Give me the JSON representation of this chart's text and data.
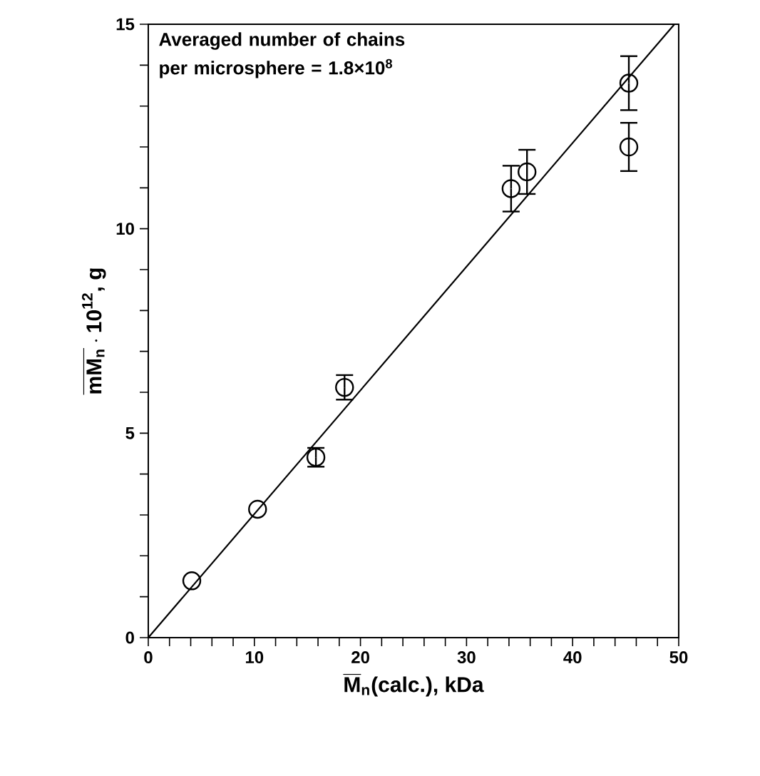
{
  "chart_data": {
    "type": "scatter",
    "xlabel": "\\overline{\\text{\\bfseries M}}_{\\text{\\bfseries n}}\\text{\\bfseries (calc.), kDa}",
    "ylabel": "\\overline{\\text{\\bfseries mM}_{\\text{\\bfseries n}}}\\cdot\\text{\\bfseries 10}^{\\text{\\bfseries 12}}\\text{\\bfseries , g}",
    "annotations": [
      "Averaged number of chains per microsphere = 1.8×10$^{8}$"
    ],
    "xlim": [
      0,
      50
    ],
    "ylim": [
      0,
      15
    ],
    "xticks": [
      0,
      {
        "value": 2,
        "label": null
      },
      {
        "value": 4,
        "label": null
      },
      {
        "value": 6,
        "label": null
      },
      {
        "value": 8,
        "label": null
      },
      10,
      {
        "value": 12,
        "label": null
      },
      {
        "value": 14,
        "label": null
      },
      {
        "value": 16,
        "label": null
      },
      {
        "value": 18,
        "label": null
      },
      20,
      {
        "value": 22,
        "label": null
      },
      {
        "value": 24,
        "label": null
      },
      {
        "value": 26,
        "label": null
      },
      {
        "value": 28,
        "label": null
      },
      30,
      {
        "value": 32,
        "label": null
      },
      {
        "value": 34,
        "label": null
      },
      {
        "value": 36,
        "label": null
      },
      {
        "value": 38,
        "label": null
      },
      40,
      {
        "value": 42,
        "label": null
      },
      {
        "value": 44,
        "label": null
      },
      {
        "value": 46,
        "label": null
      },
      {
        "value": 48,
        "label": null
      },
      50
    ],
    "yticks": [
      0,
      {
        "value": 1,
        "label": null
      },
      {
        "value": 2,
        "label": null
      },
      {
        "value": 3,
        "label": null
      },
      {
        "value": 4,
        "label": null
      },
      5,
      {
        "value": 6,
        "label": null
      },
      {
        "value": 7,
        "label": null
      },
      {
        "value": 8,
        "label": null
      },
      {
        "value": 9,
        "label": null
      },
      10,
      {
        "value": 11,
        "label": null
      },
      {
        "value": 12,
        "label": null
      },
      {
        "value": 13,
        "label": null
      },
      {
        "value": 14,
        "label": null
      },
      15
    ],
    "series": [
      {
        "color": "#000000",
        "marker": "circle",
        "x": [
          4.1,
          10.3,
          15.8,
          18.5,
          34.2,
          35.7,
          45.3,
          45.3
        ],
        "values": [
          1.39,
          3.14,
          4.41,
          6.12,
          10.98,
          11.39,
          13.56,
          12.0
        ],
        "errors": [
          null,
          null,
          0.23,
          0.3,
          0.56,
          0.54,
          0.66,
          0.59
        ]
      },
      {
        "type": "line",
        "color": "#000000",
        "marker": "none",
        "line_style": "solid",
        "x": [
          0,
          49.6
        ],
        "values": [
          0,
          15
        ]
      }
    ]
  }
}
